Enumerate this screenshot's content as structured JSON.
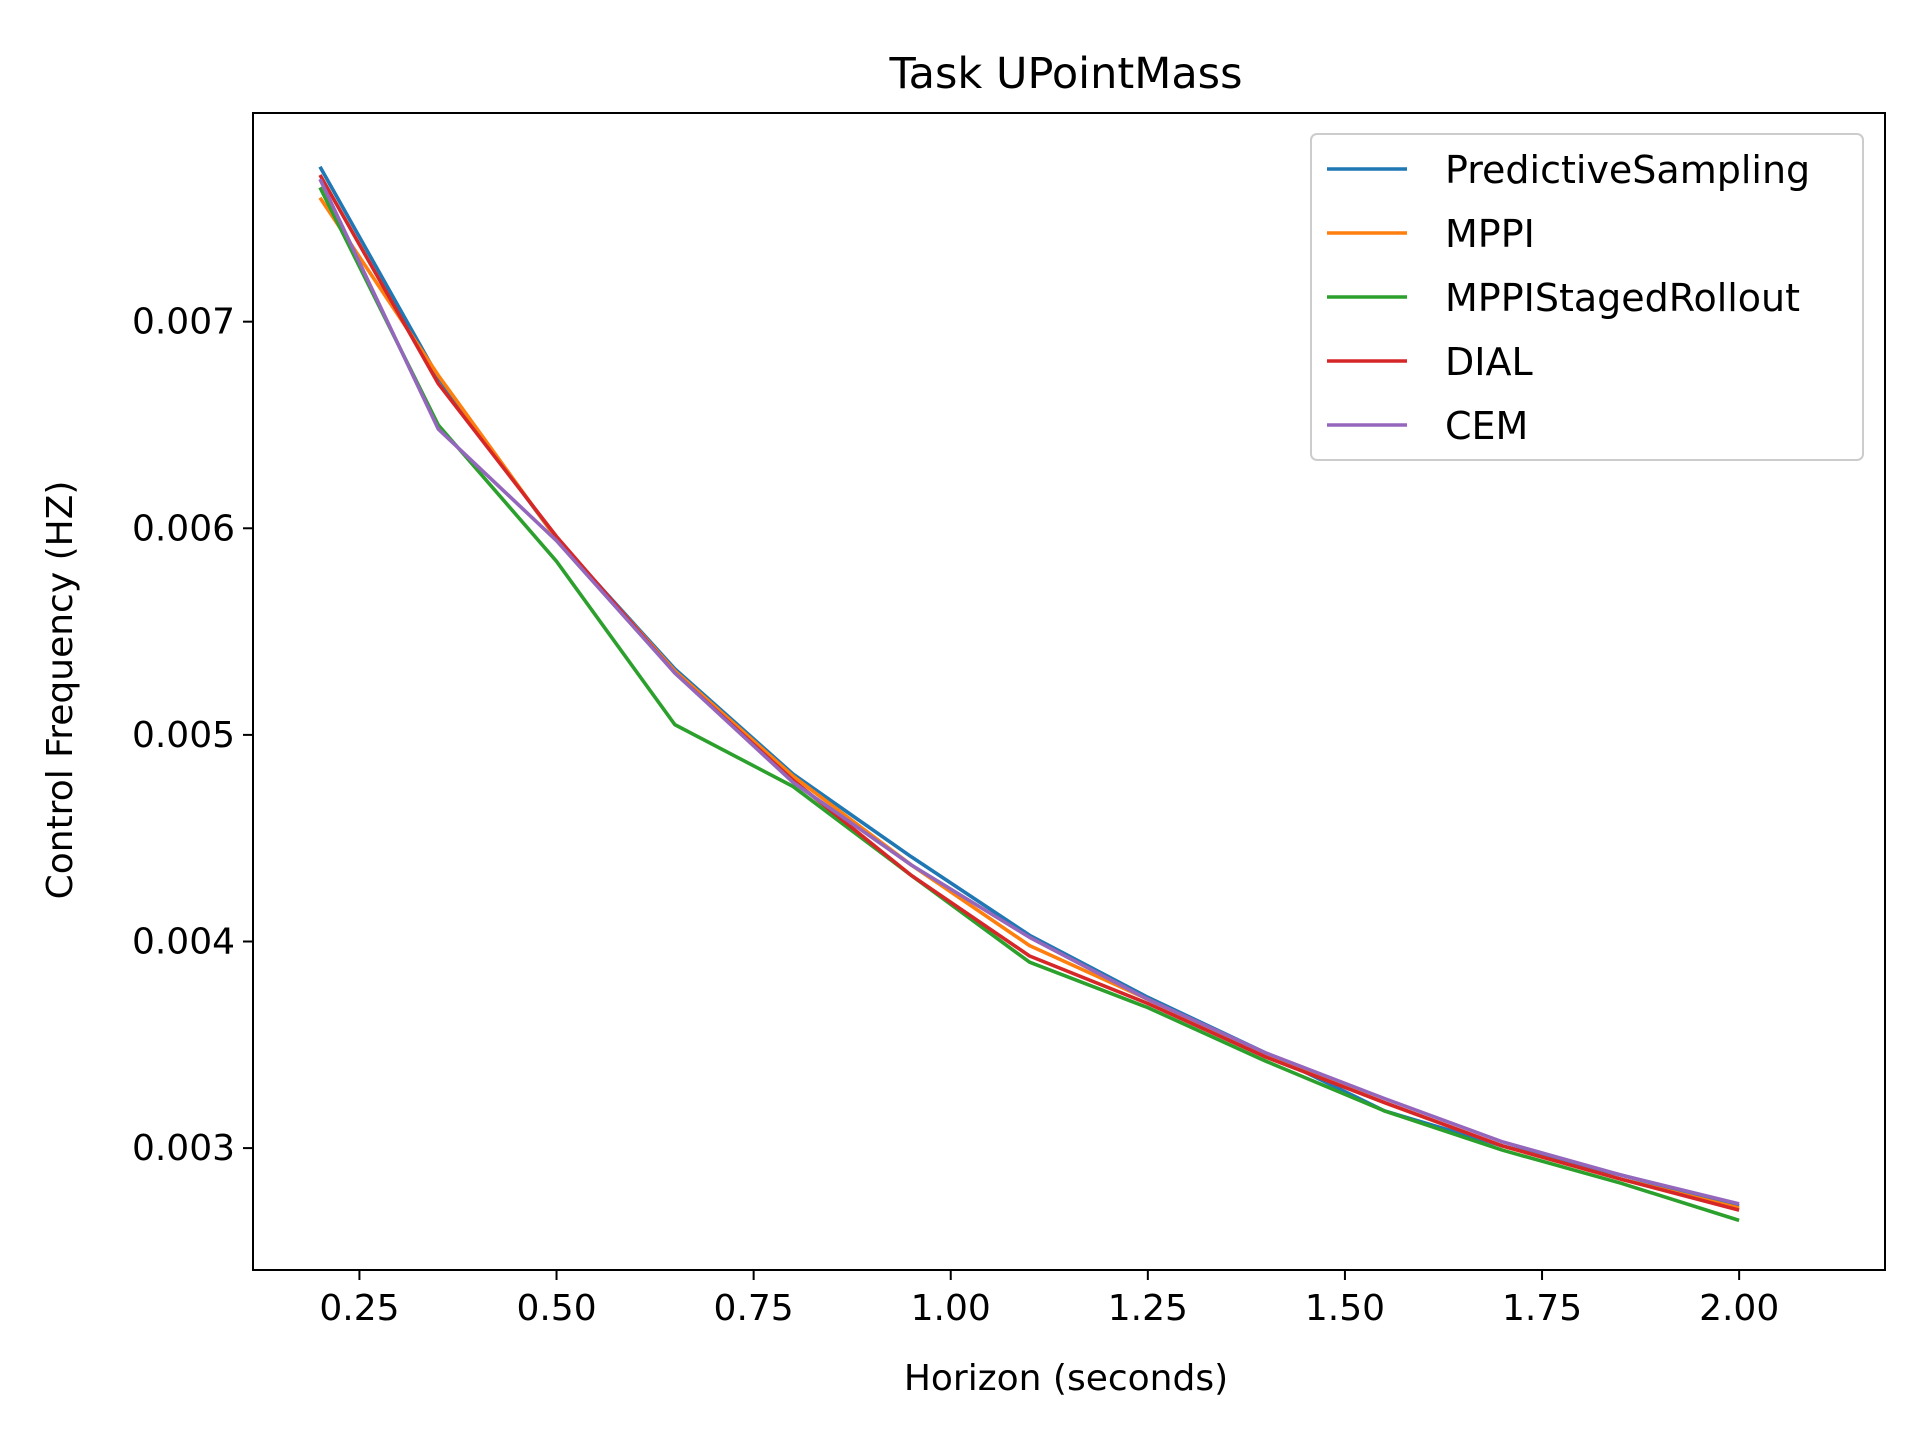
{
  "chart_data": {
    "type": "line",
    "title": "Task UPointMass",
    "xlabel": "Horizon (seconds)",
    "ylabel": "Control Frequency (HZ)",
    "xlim": [
      0.115,
      2.185
    ],
    "ylim": [
      0.00241,
      0.00801
    ],
    "xticks": [
      "0.25",
      "0.50",
      "0.75",
      "1.00",
      "1.25",
      "1.50",
      "1.75",
      "2.00"
    ],
    "xtick_values": [
      0.25,
      0.5,
      0.75,
      1.0,
      1.25,
      1.5,
      1.75,
      2.0
    ],
    "yticks": [
      "0.003",
      "0.004",
      "0.005",
      "0.006",
      "0.007"
    ],
    "ytick_values": [
      0.003,
      0.004,
      0.005,
      0.006,
      0.007
    ],
    "grid": false,
    "legend_position": "top-right",
    "x": [
      0.2,
      0.35,
      0.5,
      0.65,
      0.8,
      0.95,
      1.1,
      1.25,
      1.4,
      1.55,
      1.7,
      1.85,
      2.0
    ],
    "series": [
      {
        "name": "PredictiveSampling",
        "color": "#1f77b4",
        "values": [
          0.00775,
          0.00673,
          0.00595,
          0.00532,
          0.00481,
          0.00441,
          0.00403,
          0.00373,
          0.00346,
          0.00318,
          0.00301,
          0.00287,
          0.00272
        ]
      },
      {
        "name": "MPPI",
        "color": "#ff7f0e",
        "values": [
          0.0076,
          0.00674,
          0.00595,
          0.00531,
          0.0048,
          0.00437,
          0.00398,
          0.00372,
          0.00345,
          0.00322,
          0.00301,
          0.00285,
          0.00271
        ]
      },
      {
        "name": "MPPIStagedRollout",
        "color": "#2ca02c",
        "values": [
          0.00765,
          0.0065,
          0.00584,
          0.00505,
          0.00475,
          0.00432,
          0.0039,
          0.00368,
          0.00342,
          0.00318,
          0.00299,
          0.00283,
          0.00265
        ]
      },
      {
        "name": "DIAL",
        "color": "#d62728",
        "values": [
          0.00771,
          0.0067,
          0.00596,
          0.0053,
          0.00478,
          0.00432,
          0.00393,
          0.0037,
          0.00344,
          0.00322,
          0.00301,
          0.00285,
          0.0027
        ]
      },
      {
        "name": "CEM",
        "color": "#9467bd",
        "values": [
          0.00769,
          0.00648,
          0.00594,
          0.0053,
          0.00477,
          0.00437,
          0.00402,
          0.00372,
          0.00346,
          0.00324,
          0.00303,
          0.00287,
          0.00273
        ]
      }
    ]
  }
}
